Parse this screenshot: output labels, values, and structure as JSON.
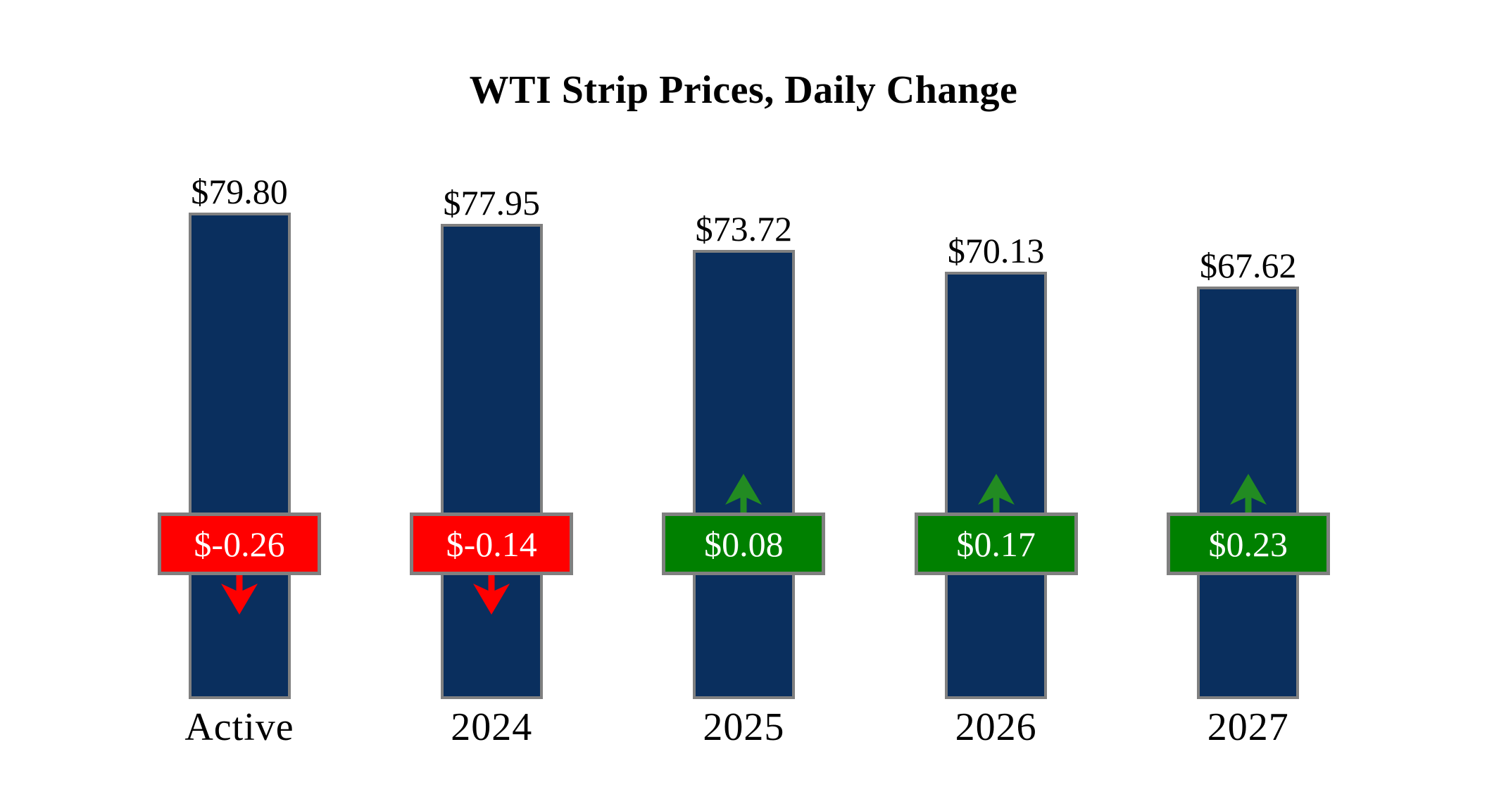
{
  "page": {
    "background": "#FFFFFF"
  },
  "chart_data": {
    "type": "bar",
    "title": "WTI Strip Prices, Daily Change",
    "categories": [
      "Active",
      "2024",
      "2025",
      "2026",
      "2027"
    ],
    "values": [
      79.8,
      77.95,
      73.72,
      70.13,
      67.62
    ],
    "value_labels": [
      "$79.80",
      "$77.95",
      "$73.72",
      "$70.13",
      "$67.62"
    ],
    "daily_changes": [
      -0.26,
      -0.14,
      0.08,
      0.17,
      0.23
    ],
    "change_labels": [
      "$-0.26",
      "$-0.14",
      "$0.08",
      "$0.17",
      "$0.23"
    ],
    "change_directions": [
      "down",
      "down",
      "up",
      "up",
      "up"
    ],
    "xlabel": "",
    "ylabel": "",
    "ylim": [
      0,
      80
    ],
    "baseline": 0,
    "grid": false,
    "legend": false,
    "colors": {
      "bar_fill": "#0A2F5E",
      "outline_gray": "#808080",
      "negative_badge": "#FF0000",
      "positive_badge": "#008000",
      "negative_arrow": "#FF0000",
      "positive_arrow": "#228B22",
      "badge_text": "#FFFFFF",
      "label_text": "#000000"
    }
  }
}
